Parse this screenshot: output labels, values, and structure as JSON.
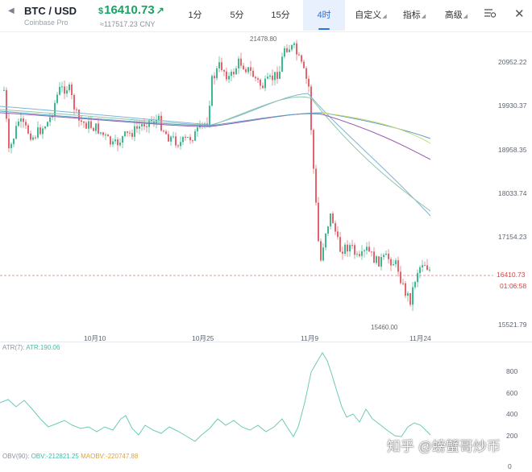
{
  "header": {
    "back_icon": "back-arrow-icon",
    "pair": "BTC / USD",
    "exchange": "Coinbase Pro",
    "price_currency": "$",
    "price": "16410.73",
    "price_arrow": "↗",
    "price_cny": "≈117517.23 CNY",
    "tabs": [
      {
        "label": "1分"
      },
      {
        "label": "5分"
      },
      {
        "label": "15分"
      },
      {
        "label": "4时"
      },
      {
        "label": "自定义"
      },
      {
        "label": "指标"
      },
      {
        "label": "高级"
      }
    ],
    "active_tab": "4时",
    "settings_icon": "chart-settings-icon",
    "close_icon": "close-icon"
  },
  "price_chart": {
    "y_labels": [
      "20952.22",
      "19930.37",
      "18958.35",
      "18033.74",
      "17154.23",
      "15521.79"
    ],
    "x_labels": [
      "10月10",
      "10月25",
      "11月9",
      "11月24"
    ],
    "high_label": "21478.80",
    "low_label": "15460.00",
    "current_price": "16410.73",
    "countdown": "01:06:58",
    "up_color": "#3cb991",
    "down_color": "#e2646c"
  },
  "atr": {
    "label": "ATR(7):",
    "value": "ATR:190.06",
    "y_labels": [
      "800",
      "600",
      "400",
      "200"
    ]
  },
  "obv": {
    "label": "OBV(90):",
    "obv_value": "OBV:-212821.25",
    "maobv_value": "MAOBV:-220747.88",
    "y_label": "0"
  },
  "watermark": "知乎 @螃蟹哥炒币"
}
